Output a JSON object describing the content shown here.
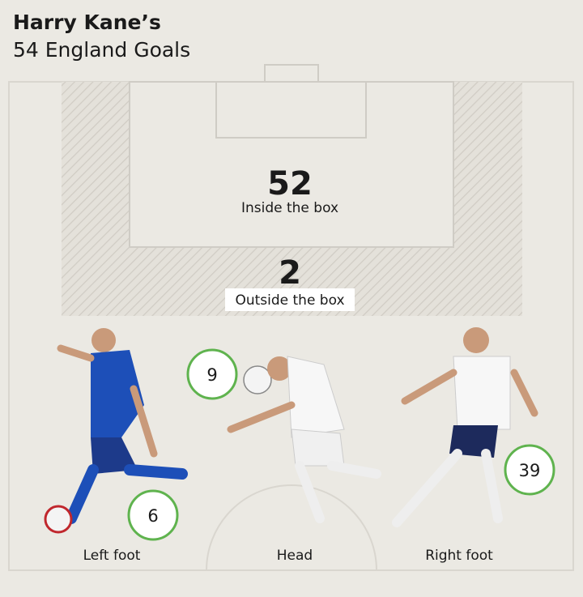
{
  "header": {
    "title": "Harry Kane’s",
    "subtitle": "54 England Goals"
  },
  "zones": [
    {
      "value": 52,
      "label": "Inside the box"
    },
    {
      "value": 2,
      "label": "Outside the box"
    }
  ],
  "methods": [
    {
      "value": 6,
      "label": "Left foot"
    },
    {
      "value": 9,
      "label": "Head"
    },
    {
      "value": 39,
      "label": "Right foot"
    }
  ]
}
